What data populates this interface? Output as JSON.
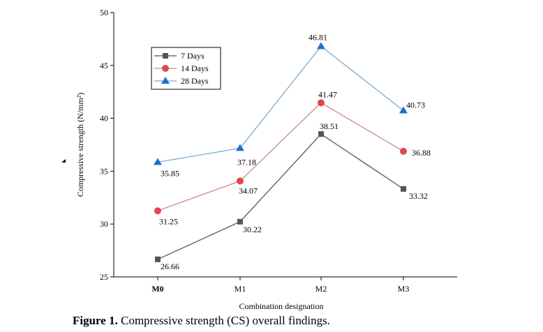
{
  "chart_data": {
    "type": "line",
    "categories": [
      "M0",
      "M1",
      "M2",
      "M3"
    ],
    "series": [
      {
        "name": "7 Days",
        "values": [
          26.66,
          30.22,
          38.51,
          33.32
        ],
        "color": "#555555",
        "marker": "square"
      },
      {
        "name": "14 Days",
        "values": [
          31.25,
          34.07,
          41.47,
          36.88
        ],
        "color": "#e0474c",
        "line_color": "#c98a8d",
        "marker": "circle"
      },
      {
        "name": "28 Days",
        "values": [
          35.85,
          37.18,
          46.81,
          40.73
        ],
        "color": "#1f6fd1",
        "line_color": "#7ea9c9",
        "marker": "triangle"
      }
    ],
    "xlabel": "Combination designation",
    "ylabel": "Compressive strength (N/mm²)",
    "ylim": [
      25,
      50
    ],
    "yticks": [
      25,
      30,
      35,
      40,
      45,
      50
    ],
    "grid": false,
    "legend_position": "top-left"
  },
  "caption": {
    "label": "Figure 1.",
    "text": " Compressive strength (CS) overall findings."
  }
}
